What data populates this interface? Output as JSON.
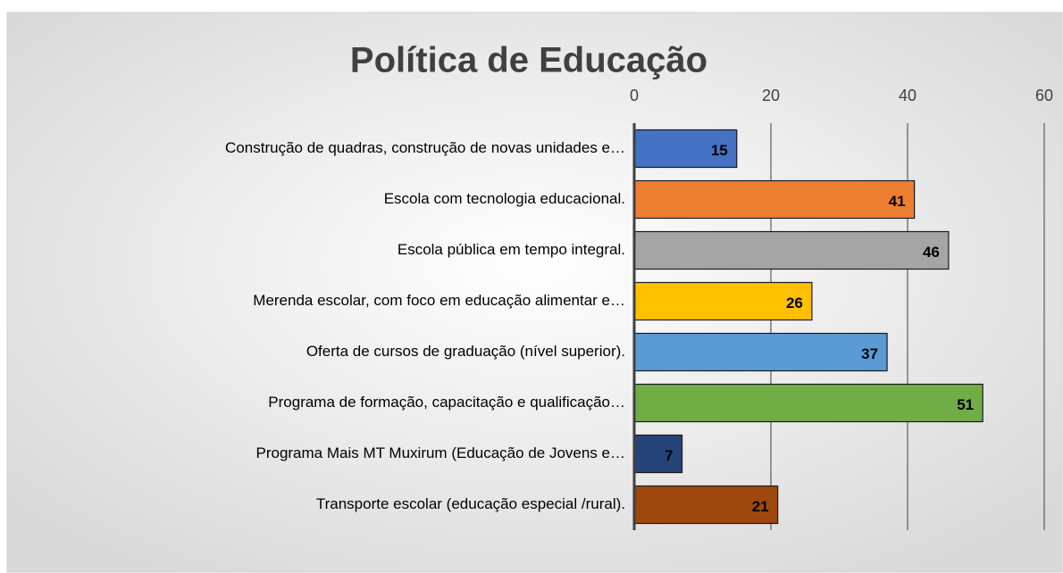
{
  "chart_data": {
    "type": "bar",
    "orientation": "horizontal",
    "title": "Política de Educação",
    "categories": [
      "Construção de quadras, construção de novas unidades e…",
      "Escola com tecnologia educacional.",
      "Escola pública em tempo integral.",
      "Merenda escolar, com foco em educação alimentar e…",
      "Oferta de cursos de graduação (nível superior).",
      "Programa de formação, capacitação e qualificação…",
      "Programa Mais MT Muxirum (Educação de Jovens e…",
      "Transporte escolar (educação especial /rural)."
    ],
    "values": [
      15,
      41,
      46,
      26,
      37,
      51,
      7,
      21
    ],
    "colors": [
      "#4472c4",
      "#ed7d31",
      "#a5a5a5",
      "#ffc000",
      "#5b9bd5",
      "#70ad47",
      "#264478",
      "#9e480e"
    ],
    "xlim": [
      0,
      60
    ],
    "xticks": [
      0,
      20,
      40,
      60
    ],
    "grid": true,
    "axis_position": "top"
  }
}
